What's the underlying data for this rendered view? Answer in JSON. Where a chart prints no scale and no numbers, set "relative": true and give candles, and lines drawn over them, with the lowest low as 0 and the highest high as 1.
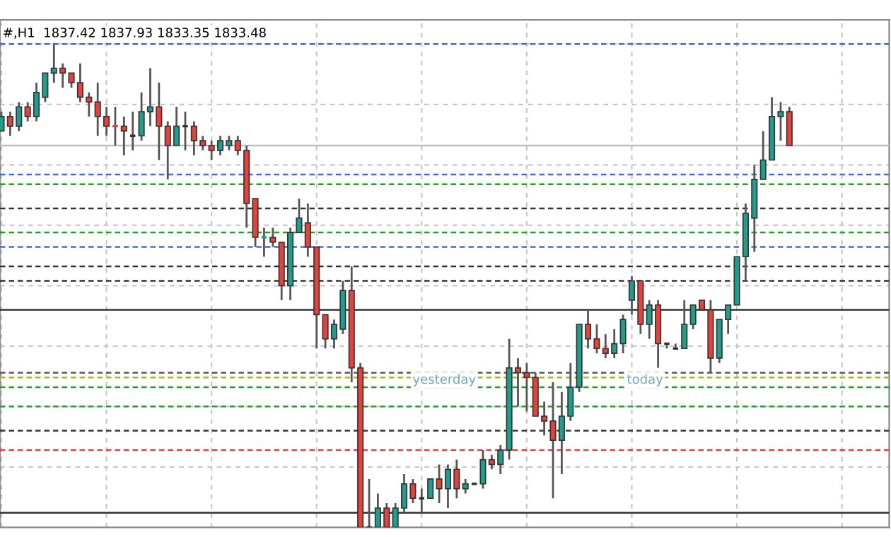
{
  "chart_data": {
    "type": "candlestick",
    "relative": true,
    "grid": true,
    "annotations": [
      "#,H1  1837.42 1837.93 1833.35 1833.48",
      "yesterday",
      "today"
    ],
    "categories": [
      null,
      null,
      null,
      null,
      null,
      null,
      null,
      null,
      null,
      null,
      null,
      null,
      null,
      null,
      null,
      null,
      null,
      null,
      null,
      null,
      null,
      null,
      null,
      null,
      null,
      null,
      null,
      null,
      null,
      null,
      null,
      null,
      null,
      null,
      null,
      null,
      null,
      null,
      null,
      null,
      null,
      null,
      null,
      null,
      null,
      null,
      null,
      null,
      null,
      null,
      null,
      null,
      null,
      null,
      null,
      null,
      null,
      null,
      null,
      null,
      null,
      null,
      null,
      null,
      null,
      null,
      null,
      null,
      null,
      null,
      null,
      null,
      null,
      null,
      null,
      null,
      null,
      null,
      null,
      null,
      null,
      null,
      null,
      null,
      null,
      null,
      null,
      null,
      null,
      null,
      null
    ],
    "ohlc": [
      [
        0.82,
        0.86,
        0.82,
        0.85
      ],
      [
        0.85,
        0.86,
        0.81,
        0.83
      ],
      [
        0.83,
        0.88,
        0.82,
        0.87
      ],
      [
        0.87,
        0.88,
        0.84,
        0.85
      ],
      [
        0.85,
        0.92,
        0.84,
        0.9
      ],
      [
        0.89,
        0.94,
        0.88,
        0.94
      ],
      [
        0.94,
        1.0,
        0.92,
        0.95
      ],
      [
        0.95,
        0.96,
        0.91,
        0.94
      ],
      [
        0.94,
        0.94,
        0.91,
        0.92
      ],
      [
        0.92,
        0.96,
        0.88,
        0.89
      ],
      [
        0.89,
        0.9,
        0.85,
        0.88
      ],
      [
        0.88,
        0.92,
        0.81,
        0.85
      ],
      [
        0.85,
        0.87,
        0.81,
        0.83
      ],
      [
        0.83,
        0.87,
        0.79,
        0.83
      ],
      [
        0.83,
        0.85,
        0.77,
        0.82
      ],
      [
        0.81,
        0.86,
        0.78,
        0.81
      ],
      [
        0.81,
        0.9,
        0.8,
        0.86
      ],
      [
        0.86,
        0.95,
        0.83,
        0.87
      ],
      [
        0.87,
        0.92,
        0.76,
        0.83
      ],
      [
        0.83,
        0.84,
        0.72,
        0.79
      ],
      [
        0.79,
        0.87,
        0.79,
        0.83
      ],
      [
        0.83,
        0.86,
        0.78,
        0.83
      ],
      [
        0.83,
        0.84,
        0.77,
        0.8
      ],
      [
        0.8,
        0.81,
        0.78,
        0.79
      ],
      [
        0.79,
        0.8,
        0.76,
        0.78
      ],
      [
        0.78,
        0.81,
        0.77,
        0.8
      ],
      [
        0.79,
        0.81,
        0.78,
        0.8
      ],
      [
        0.8,
        0.81,
        0.77,
        0.78
      ],
      [
        0.78,
        0.79,
        0.62,
        0.67
      ],
      [
        0.68,
        0.68,
        0.58,
        0.6
      ],
      [
        0.6,
        0.62,
        0.56,
        0.6
      ],
      [
        0.6,
        0.62,
        0.58,
        0.59
      ],
      [
        0.59,
        0.59,
        0.47,
        0.5
      ],
      [
        0.5,
        0.62,
        0.47,
        0.61
      ],
      [
        0.61,
        0.68,
        0.61,
        0.64
      ],
      [
        0.63,
        0.67,
        0.56,
        0.58
      ],
      [
        0.58,
        0.58,
        0.37,
        0.44
      ],
      [
        0.44,
        0.44,
        0.37,
        0.39
      ],
      [
        0.39,
        0.43,
        0.37,
        0.42
      ],
      [
        0.41,
        0.51,
        0.4,
        0.49
      ],
      [
        0.49,
        0.54,
        0.3,
        0.33
      ],
      [
        0.33,
        0.34,
        0.0,
        0.0
      ],
      [
        0.0,
        0.1,
        0.0,
        0.0
      ],
      [
        0.0,
        0.07,
        0.0,
        0.04
      ],
      [
        0.04,
        0.05,
        0.0,
        0.0
      ],
      [
        0.0,
        0.05,
        0.0,
        0.04
      ],
      [
        0.04,
        0.11,
        0.03,
        0.09
      ],
      [
        0.09,
        0.1,
        0.05,
        0.06
      ],
      [
        0.06,
        0.08,
        0.03,
        0.06
      ],
      [
        0.06,
        0.1,
        0.06,
        0.1
      ],
      [
        0.1,
        0.13,
        0.05,
        0.08
      ],
      [
        0.08,
        0.13,
        0.04,
        0.12
      ],
      [
        0.12,
        0.14,
        0.06,
        0.08
      ],
      [
        0.08,
        0.1,
        0.07,
        0.09
      ],
      [
        0.09,
        0.09,
        0.09,
        0.09
      ],
      [
        0.09,
        0.16,
        0.08,
        0.14
      ],
      [
        0.14,
        0.15,
        0.12,
        0.13
      ],
      [
        0.13,
        0.17,
        0.11,
        0.16
      ],
      [
        0.16,
        0.39,
        0.14,
        0.33
      ],
      [
        0.33,
        0.35,
        0.25,
        0.32
      ],
      [
        0.32,
        0.34,
        0.24,
        0.31
      ],
      [
        0.31,
        0.32,
        0.23,
        0.23
      ],
      [
        0.23,
        0.26,
        0.19,
        0.22
      ],
      [
        0.22,
        0.3,
        0.06,
        0.18
      ],
      [
        0.18,
        0.28,
        0.11,
        0.23
      ],
      [
        0.23,
        0.34,
        0.22,
        0.29
      ],
      [
        0.29,
        0.42,
        0.28,
        0.42
      ],
      [
        0.42,
        0.45,
        0.37,
        0.39
      ],
      [
        0.39,
        0.42,
        0.36,
        0.37
      ],
      [
        0.37,
        0.4,
        0.35,
        0.36
      ],
      [
        0.36,
        0.41,
        0.35,
        0.38
      ],
      [
        0.38,
        0.44,
        0.36,
        0.43
      ],
      [
        0.47,
        0.52,
        0.44,
        0.51
      ],
      [
        0.51,
        0.51,
        0.4,
        0.42
      ],
      [
        0.42,
        0.47,
        0.39,
        0.46
      ],
      [
        0.46,
        0.47,
        0.33,
        0.38
      ],
      [
        0.38,
        0.38,
        0.37,
        0.38
      ],
      [
        0.37,
        0.38,
        0.37,
        0.37
      ],
      [
        0.37,
        0.47,
        0.37,
        0.42
      ],
      [
        0.42,
        0.46,
        0.41,
        0.46
      ],
      [
        0.47,
        0.47,
        0.45,
        0.45
      ],
      [
        0.45,
        0.47,
        0.32,
        0.35
      ],
      [
        0.35,
        0.43,
        0.34,
        0.43
      ],
      [
        0.43,
        0.46,
        0.4,
        0.46
      ],
      [
        0.46,
        0.56,
        0.46,
        0.56
      ],
      [
        0.56,
        0.67,
        0.51,
        0.65
      ],
      [
        0.64,
        0.75,
        0.57,
        0.72
      ],
      [
        0.72,
        0.82,
        0.72,
        0.76
      ],
      [
        0.76,
        0.89,
        0.76,
        0.85
      ],
      [
        0.85,
        0.88,
        0.8,
        0.86
      ],
      [
        0.86,
        0.87,
        0.79,
        0.79
      ]
    ],
    "colors": [
      "#1f9e8c",
      "#e8413c",
      "#1f9e8c",
      "#e8413c",
      "#1f9e8c",
      "#1f9e8c",
      "#1f9e8c",
      "#e8413c",
      "#e8413c",
      "#e8413c",
      "#e8413c",
      "#e8413c",
      "#e8413c",
      "#e8413c",
      "#e8413c",
      "#333333",
      "#1f9e8c",
      "#1f9e8c",
      "#e8413c",
      "#e8413c",
      "#1f9e8c",
      "#333333",
      "#e8413c",
      "#e8413c",
      "#e8413c",
      "#1f9e8c",
      "#1f9e8c",
      "#e8413c",
      "#e8413c",
      "#e8413c",
      "#1f9e8c",
      "#e8413c",
      "#e8413c",
      "#1f9e8c",
      "#1f9e8c",
      "#e8413c",
      "#e8413c",
      "#e8413c",
      "#1f9e8c",
      "#1f9e8c",
      "#e8413c",
      "#e8413c",
      "#333333",
      "#1f9e8c",
      "#e8413c",
      "#1f9e8c",
      "#1f9e8c",
      "#e8413c",
      "#333333",
      "#1f9e8c",
      "#e8413c",
      "#1f9e8c",
      "#e8413c",
      "#1f9e8c",
      "#333333",
      "#1f9e8c",
      "#e8413c",
      "#1f9e8c",
      "#1f9e8c",
      "#e8413c",
      "#e8413c",
      "#e8413c",
      "#e8413c",
      "#e8413c",
      "#1f9e8c",
      "#1f9e8c",
      "#1f9e8c",
      "#e8413c",
      "#e8413c",
      "#e8413c",
      "#1f9e8c",
      "#1f9e8c",
      "#1f9e8c",
      "#e8413c",
      "#1f9e8c",
      "#e8413c",
      "#333333",
      "#333333",
      "#1f9e8c",
      "#1f9e8c",
      "#e8413c",
      "#e8413c",
      "#1f9e8c",
      "#1f9e8c",
      "#1f9e8c",
      "#1f9e8c",
      "#1f9e8c",
      "#1f9e8c",
      "#1f9e8c",
      "#1f9e8c",
      "#e8413c"
    ],
    "ref_lines": [
      {
        "axis": "y",
        "value": 1.0,
        "label": null,
        "color": "#4169e1",
        "line_style": "dashed"
      },
      {
        "axis": "y",
        "value": 0.79,
        "label": null,
        "color": "#c0c0c0",
        "line_style": "solid"
      },
      {
        "axis": "y",
        "value": 0.73,
        "label": null,
        "color": "#4169e1",
        "line_style": "dashed"
      },
      {
        "axis": "y",
        "value": 0.71,
        "label": null,
        "color": "#22a022",
        "line_style": "dashed"
      },
      {
        "axis": "y",
        "value": 0.66,
        "label": null,
        "color": "#333333",
        "line_style": "dashed"
      },
      {
        "axis": "y",
        "value": 0.61,
        "label": null,
        "color": "#22a022",
        "line_style": "dashed"
      },
      {
        "axis": "y",
        "value": 0.58,
        "label": null,
        "color": "#4169e1",
        "line_style": "dashed"
      },
      {
        "axis": "y",
        "value": 0.54,
        "label": null,
        "color": "#333333",
        "line_style": "dashed"
      },
      {
        "axis": "y",
        "value": 0.51,
        "label": null,
        "color": "#333333",
        "line_style": "dashed"
      },
      {
        "axis": "y",
        "value": 0.45,
        "label": null,
        "color": "#333333",
        "line_style": "solid"
      },
      {
        "axis": "y",
        "value": 0.32,
        "label": null,
        "color": "#555555",
        "line_style": "dashed"
      },
      {
        "axis": "y",
        "value": 0.31,
        "label": null,
        "color": "#b0b020",
        "line_style": "dashed"
      },
      {
        "axis": "y",
        "value": 0.29,
        "label": null,
        "color": "#22a022",
        "line_style": "dashed"
      },
      {
        "axis": "y",
        "value": 0.25,
        "label": null,
        "color": "#22a022",
        "line_style": "dashed"
      },
      {
        "axis": "y",
        "value": 0.2,
        "label": null,
        "color": "#333333",
        "line_style": "dashed"
      },
      {
        "axis": "y",
        "value": 0.16,
        "label": null,
        "color": "#e04040",
        "line_style": "dashed"
      },
      {
        "axis": "y",
        "value": 0.03,
        "label": null,
        "color": "#333333",
        "line_style": "solid"
      }
    ]
  }
}
